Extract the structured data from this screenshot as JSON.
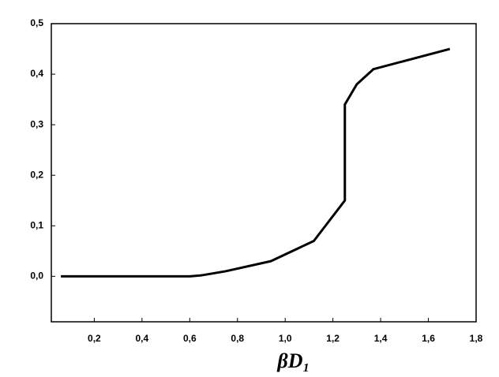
{
  "chart_data": {
    "type": "line",
    "xlabel": "βD₁",
    "x": [
      0.06,
      0.6,
      0.65,
      0.75,
      0.94,
      1.12,
      1.25,
      1.25,
      1.3,
      1.37,
      1.69
    ],
    "series": [
      {
        "color": "#000000",
        "values": [
          0,
          0,
          0.002,
          0.01,
          0.03,
          0.07,
          0.15,
          0.34,
          0.38,
          0.41,
          0.45
        ]
      }
    ],
    "xlim": [
      0.02,
      1.8
    ],
    "xticks": [
      {
        "value": 0.2,
        "label": "0,2"
      },
      {
        "value": 0.4,
        "label": "0,4"
      },
      {
        "value": 0.6,
        "label": "0,6"
      },
      {
        "value": 0.8,
        "label": "0,8"
      },
      {
        "value": 1.0,
        "label": "1,0"
      },
      {
        "value": 1.2,
        "label": "1,2"
      },
      {
        "value": 1.4,
        "label": "1,4"
      },
      {
        "value": 1.6,
        "label": "1,6"
      },
      {
        "value": 1.8,
        "label": "1,8"
      }
    ],
    "ylim": [
      -0.09,
      0.5
    ],
    "yticks": [
      {
        "value": 0.0,
        "label": "0,0"
      },
      {
        "value": 0.1,
        "label": "0,1"
      },
      {
        "value": 0.2,
        "label": "0,2"
      },
      {
        "value": 0.3,
        "label": "0,3"
      },
      {
        "value": 0.4,
        "label": "0,4"
      },
      {
        "value": 0.5,
        "label": "0,5"
      }
    ],
    "grid": false
  }
}
